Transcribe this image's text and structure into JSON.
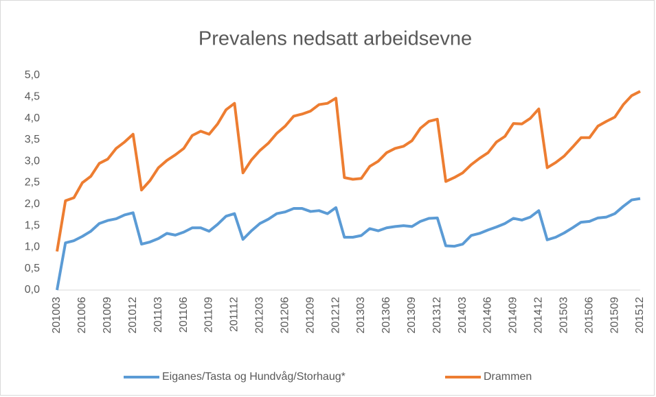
{
  "chart_data": {
    "type": "line",
    "title": "Prevalens nedsatt arbeidsevne",
    "categories": [
      "201003",
      null,
      null,
      "201006",
      null,
      null,
      "201009",
      null,
      null,
      "201012",
      null,
      null,
      "201103",
      null,
      null,
      "201106",
      null,
      null,
      "201109",
      null,
      null,
      "201112",
      null,
      null,
      "201203",
      null,
      null,
      "201206",
      null,
      null,
      "201209",
      null,
      null,
      "201212",
      null,
      null,
      "201303",
      null,
      null,
      "201306",
      null,
      null,
      "201309",
      null,
      null,
      "201312",
      null,
      null,
      "201403",
      null,
      null,
      "201406",
      null,
      null,
      "201409",
      null,
      null,
      "201412",
      null,
      null,
      "201503",
      null,
      null,
      "201506",
      null,
      null,
      "201509",
      null,
      null,
      "201512"
    ],
    "series": [
      {
        "name": "Eiganes/Tasta og Hundvåg/Storhaug*",
        "color": "#5b9bd5",
        "values": [
          0.0,
          1.1,
          1.15,
          1.25,
          1.37,
          1.55,
          1.62,
          1.66,
          1.75,
          1.8,
          1.07,
          1.12,
          1.2,
          1.32,
          1.28,
          1.35,
          1.45,
          1.45,
          1.37,
          1.53,
          1.72,
          1.78,
          1.18,
          1.38,
          1.55,
          1.65,
          1.78,
          1.82,
          1.9,
          1.9,
          1.83,
          1.85,
          1.78,
          1.92,
          1.23,
          1.23,
          1.27,
          1.43,
          1.38,
          1.45,
          1.48,
          1.5,
          1.48,
          1.6,
          1.67,
          1.68,
          1.03,
          1.02,
          1.07,
          1.27,
          1.32,
          1.4,
          1.47,
          1.55,
          1.67,
          1.63,
          1.7,
          1.85,
          1.17,
          1.23,
          1.33,
          1.45,
          1.58,
          1.6,
          1.68,
          1.7,
          1.78,
          1.95,
          2.1,
          2.13
        ]
      },
      {
        "name": "Drammen",
        "color": "#ed7d31",
        "values": [
          0.9,
          2.08,
          2.15,
          2.5,
          2.65,
          2.95,
          3.05,
          3.3,
          3.45,
          3.63,
          2.33,
          2.55,
          2.85,
          3.02,
          3.15,
          3.3,
          3.6,
          3.7,
          3.63,
          3.87,
          4.2,
          4.35,
          2.73,
          3.03,
          3.25,
          3.42,
          3.65,
          3.82,
          4.05,
          4.1,
          4.17,
          4.32,
          4.35,
          4.47,
          2.62,
          2.58,
          2.6,
          2.88,
          3.0,
          3.2,
          3.3,
          3.35,
          3.48,
          3.77,
          3.93,
          3.98,
          2.53,
          2.62,
          2.73,
          2.92,
          3.07,
          3.2,
          3.45,
          3.58,
          3.88,
          3.87,
          4.0,
          4.22,
          2.85,
          2.97,
          3.12,
          3.33,
          3.55,
          3.55,
          3.82,
          3.93,
          4.03,
          4.32,
          4.53,
          4.63
        ]
      }
    ],
    "ylim": [
      0,
      5
    ],
    "yticks": [
      {
        "value": 0,
        "label": "0,0"
      },
      {
        "value": 0.5,
        "label": "0,5"
      },
      {
        "value": 1,
        "label": "1,0"
      },
      {
        "value": 1.5,
        "label": "1,5"
      },
      {
        "value": 2,
        "label": "2,0"
      },
      {
        "value": 2.5,
        "label": "2,5"
      },
      {
        "value": 3,
        "label": "3,0"
      },
      {
        "value": 3.5,
        "label": "3,5"
      },
      {
        "value": 4,
        "label": "4,0"
      },
      {
        "value": 4.5,
        "label": "4,5"
      },
      {
        "value": 5,
        "label": "5,0"
      }
    ],
    "grid": false,
    "legend": "bottom"
  }
}
